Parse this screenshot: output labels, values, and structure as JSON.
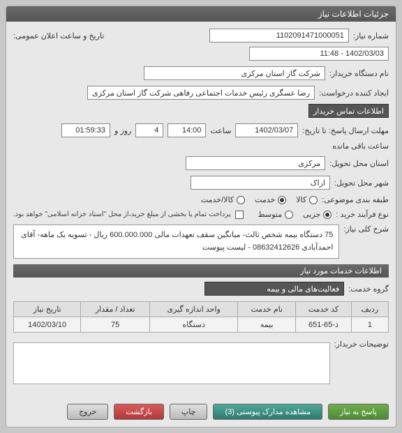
{
  "header": {
    "title": "جزئیات اطلاعات نیاز"
  },
  "info": {
    "need_no_label": "شماره نیاز:",
    "need_no": "1102091471000051",
    "public_datetime_label": "تاریخ و ساعت اعلان عمومی:",
    "public_datetime": "1402/03/03 - 11:48",
    "buyer_label": "نام دستگاه خریدار:",
    "buyer": "شرکت گاز استان مرکزی",
    "requester_label": "ایجاد کننده درخواست:",
    "requester": "رضا عسگری رئیس خدمات اجتماعی رفاهی شرکت گاز استان مرکزی",
    "contact_btn": "اطلاعات تماس خریدار",
    "deadline_label": "مهلت ارسال پاسخ: تا تاریخ:",
    "deadline_date": "1402/03/07",
    "time_label": "ساعت",
    "deadline_time": "14:00",
    "day_label": "روز و",
    "days": "4",
    "remaining_label": "ساعت باقی مانده",
    "remaining": "01:59:33",
    "province_label": "استان محل تحویل:",
    "province": "مرکزی",
    "city_label": "شهر محل تحویل:",
    "city": "اراک",
    "subject_type_label": "طبقه بندی موضوعی:",
    "radio_goods": "کالا",
    "radio_service": "خدمت",
    "radio_goods_service": "کالا/خدمت",
    "process_label": "نوع فرآیند خرید :",
    "radio_small": "جزیی",
    "radio_medium": "متوسط",
    "partial_pay_label": "پرداخت تمام یا بخشی از مبلغ خرید،از محل \"اسناد خزانه اسلامی\" خواهد بود.",
    "desc_label": "شرح کلی نیاز:",
    "desc": "75 دستگاه بیمه شخص ثالث- میانگین سقف تعهدات مالی 600.000.000 ریال - تسویه یک ماهه- آقای احمدآبادی 08632412626 - لیست پیوست",
    "services_header": "اطلاعات خدمات مورد نیاز",
    "group_label": "گروه خدمت:",
    "group": "فعالیت‌های مالی و بیمه"
  },
  "table": {
    "cols": [
      "ردیف",
      "کد خدمت",
      "نام خدمت",
      "واحد اندازه گیری",
      "تعداد / مقدار",
      "تاریخ نیاز"
    ],
    "rows": [
      [
        "1",
        "ذ-65-651",
        "بیمه",
        "دستگاه",
        "75",
        "1402/03/10"
      ]
    ]
  },
  "comments_label": "توضیحات خریدار:",
  "buttons": {
    "reply": "پاسخ به نیاز",
    "attachments": "مشاهده مدارک پیوستی (3)",
    "print": "چاپ",
    "back": "بازگشت",
    "exit": "خروج"
  }
}
